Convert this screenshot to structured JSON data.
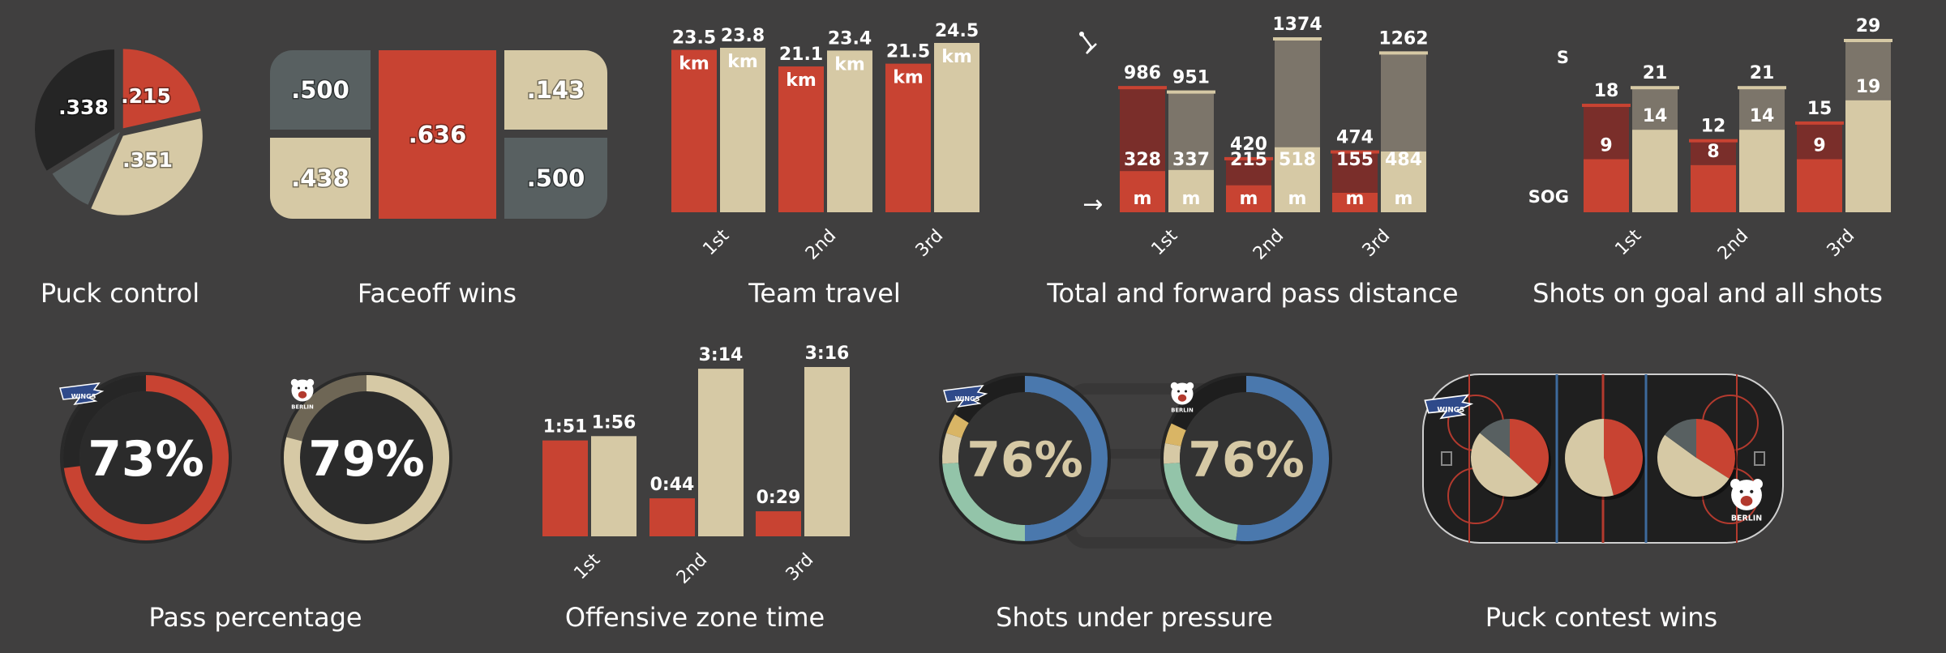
{
  "colors": {
    "background": "#403f3f",
    "team_red": "#c84332",
    "team_beige": "#d6c9a5",
    "slate": "#586061",
    "dark": "#252525",
    "dark_red": "#7a2e2a",
    "dark_beige": "#7c756a",
    "blue": "#4a78ad",
    "teal": "#93c4a9",
    "yellow": "#d9b565"
  },
  "panels": {
    "puck_control": "Puck control",
    "faceoff_wins": "Faceoff wins",
    "team_travel": "Team travel",
    "pass_distance": "Total and forward pass distance",
    "shots": "Shots on goal and all shots",
    "pass_percentage": "Pass percentage",
    "zone_time": "Offensive zone time",
    "pressure": "Shots under pressure",
    "puck_contest": "Puck contest wins"
  },
  "logos": {
    "berlin": "BERLIN",
    "wings": "WINGS"
  },
  "chart_data": [
    {
      "id": "puck_control",
      "type": "pie",
      "title": "Puck control",
      "slices": [
        {
          "label": ".215",
          "value": 0.215,
          "color": "#c84332"
        },
        {
          "label": ".351",
          "value": 0.351,
          "color": "#d6c9a5"
        },
        {
          "label": "",
          "value": 0.096,
          "color": "#586061"
        },
        {
          "label": ".338",
          "value": 0.338,
          "color": "#252525"
        }
      ]
    },
    {
      "id": "faceoff_wins",
      "type": "treemap",
      "title": "Faceoff wins",
      "cells": [
        {
          "label": ".500",
          "color": "#586061"
        },
        {
          "label": ".438",
          "color": "#d6c9a5"
        },
        {
          "label": ".636",
          "color": "#c84332"
        },
        {
          "label": ".143",
          "color": "#d6c9a5"
        },
        {
          "label": ".500",
          "color": "#586061"
        }
      ]
    },
    {
      "id": "team_travel",
      "type": "bar",
      "title": "Team travel",
      "categories": [
        "1st",
        "2nd",
        "3rd"
      ],
      "unit": "km",
      "series": [
        {
          "values": [
            23.5,
            21.1,
            21.5
          ],
          "labels": [
            "23.5",
            "21.1",
            "21.5"
          ]
        },
        {
          "values": [
            23.8,
            23.4,
            24.5
          ],
          "labels": [
            "23.8",
            "23.4",
            "24.5"
          ]
        }
      ],
      "ylim": [
        0,
        24.5
      ]
    },
    {
      "id": "pass_distance",
      "type": "bar",
      "title": "Total and forward pass distance",
      "categories": [
        "1st",
        "2nd",
        "3rd"
      ],
      "unit": "m",
      "arrow": "→",
      "series": [
        {
          "total": [
            986,
            420,
            474
          ],
          "forward": [
            328,
            215,
            155
          ]
        },
        {
          "total": [
            951,
            1374,
            1262
          ],
          "forward": [
            337,
            518,
            484
          ]
        }
      ],
      "ylim": [
        0,
        1374
      ]
    },
    {
      "id": "shots",
      "type": "bar",
      "title": "Shots on goal and all shots",
      "categories": [
        "1st",
        "2nd",
        "3rd"
      ],
      "legend": {
        "total": "S",
        "on_goal": "SOG"
      },
      "series": [
        {
          "total": [
            18,
            12,
            15
          ],
          "on_goal": [
            9,
            8,
            9
          ]
        },
        {
          "total": [
            21,
            21,
            29
          ],
          "on_goal": [
            14,
            14,
            19
          ]
        }
      ],
      "ylim": [
        0,
        29
      ]
    },
    {
      "id": "pass_percentage",
      "type": "donut",
      "title": "Pass percentage",
      "teams": [
        {
          "team": "Wild Wings",
          "value": 73,
          "label": "73%",
          "color": "#c84332"
        },
        {
          "team": "Berlin",
          "value": 79,
          "label": "79%",
          "color": "#d6c9a5"
        }
      ]
    },
    {
      "id": "zone_time",
      "type": "bar",
      "title": "Offensive zone time",
      "categories": [
        "1st",
        "2nd",
        "3rd"
      ],
      "series": [
        {
          "seconds": [
            111,
            44,
            29
          ],
          "labels": [
            "1:51",
            "0:44",
            "0:29"
          ]
        },
        {
          "seconds": [
            116,
            194,
            196
          ],
          "labels": [
            "1:56",
            "3:14",
            "3:16"
          ]
        }
      ],
      "ylim": [
        0,
        196
      ]
    },
    {
      "id": "pressure",
      "type": "donut",
      "title": "Shots under pressure",
      "teams": [
        {
          "team": "Wild Wings",
          "label": "76%",
          "segments": [
            {
              "value": 0.5,
              "color": "#4a78ad"
            },
            {
              "value": 0.24,
              "color": "#93c4a9"
            },
            {
              "value": 0.06,
              "color": "#d6c9a5"
            },
            {
              "value": 0.04,
              "color": "#d9b565"
            }
          ]
        },
        {
          "team": "Berlin",
          "label": "76%",
          "segments": [
            {
              "value": 0.52,
              "color": "#4a78ad"
            },
            {
              "value": 0.22,
              "color": "#93c4a9"
            },
            {
              "value": 0.04,
              "color": "#d6c9a5"
            },
            {
              "value": 0.04,
              "color": "#d9b565"
            }
          ]
        }
      ]
    },
    {
      "id": "puck_contest",
      "type": "pie",
      "title": "Puck contest wins",
      "zones": [
        {
          "slices": [
            {
              "value": 0.37,
              "color": "#c84332"
            },
            {
              "value": 0.49,
              "color": "#d6c9a5"
            },
            {
              "value": 0.14,
              "color": "#586061"
            }
          ]
        },
        {
          "slices": [
            {
              "value": 0.46,
              "color": "#c84332"
            },
            {
              "value": 0.54,
              "color": "#d6c9a5"
            }
          ]
        },
        {
          "slices": [
            {
              "value": 0.34,
              "color": "#c84332"
            },
            {
              "value": 0.51,
              "color": "#d6c9a5"
            },
            {
              "value": 0.15,
              "color": "#586061"
            }
          ]
        }
      ]
    }
  ]
}
